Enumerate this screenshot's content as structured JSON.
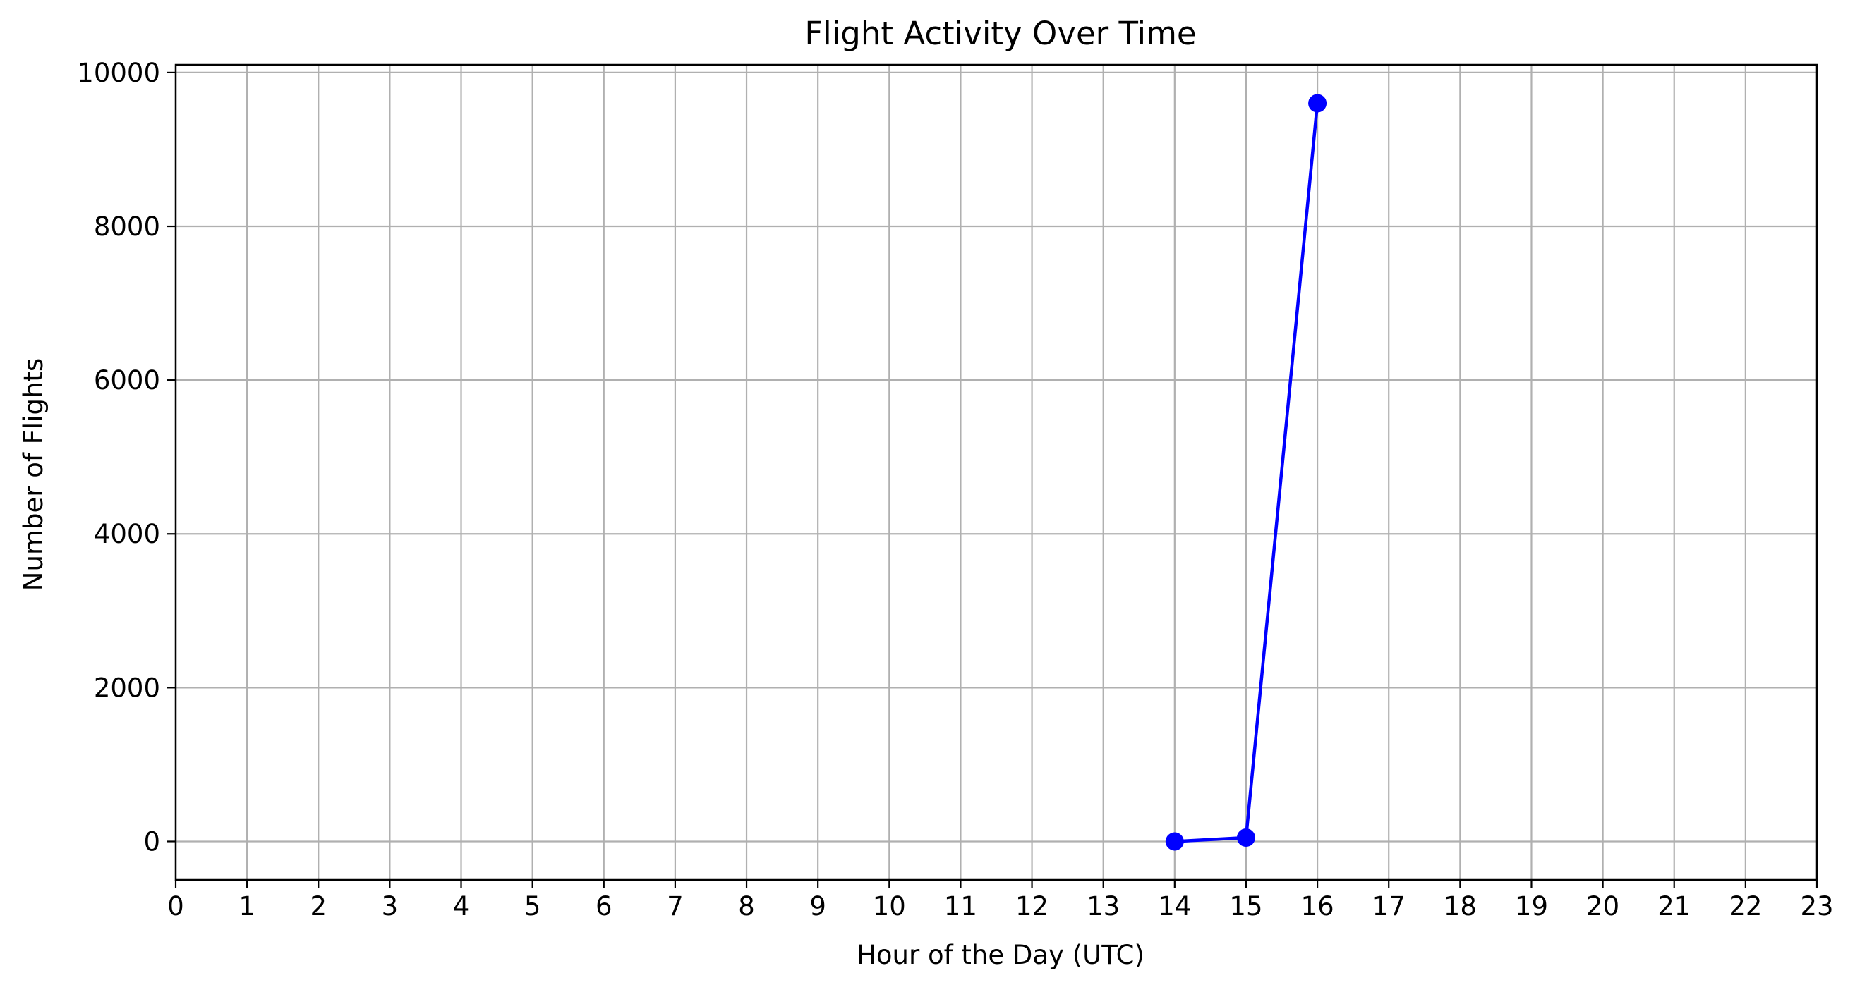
{
  "chart_data": {
    "type": "line",
    "title": "Flight Activity Over Time",
    "xlabel": "Hour of the Day (UTC)",
    "ylabel": "Number of Flights",
    "xlim": [
      0,
      23
    ],
    "ylim": [
      -500,
      10100
    ],
    "xticks": [
      0,
      1,
      2,
      3,
      4,
      5,
      6,
      7,
      8,
      9,
      10,
      11,
      12,
      13,
      14,
      15,
      16,
      17,
      18,
      19,
      20,
      21,
      22,
      23
    ],
    "yticks": [
      0,
      2000,
      4000,
      6000,
      8000,
      10000
    ],
    "grid": true,
    "legend": "none",
    "series": [
      {
        "color": "#0000ff",
        "marker": "circle",
        "x": [
          14,
          15,
          16
        ],
        "y": [
          0,
          50,
          9600
        ]
      }
    ]
  }
}
